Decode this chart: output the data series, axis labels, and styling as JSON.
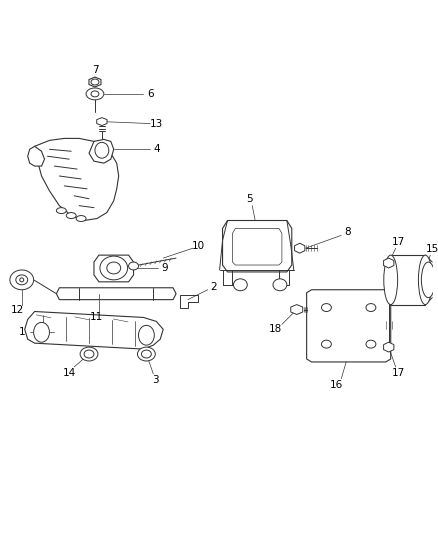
{
  "background_color": "#ffffff",
  "line_color": "#333333",
  "text_color": "#000000",
  "fig_width": 4.38,
  "fig_height": 5.33,
  "dpi": 100,
  "label_fontsize": 7.5,
  "line_width": 0.7
}
